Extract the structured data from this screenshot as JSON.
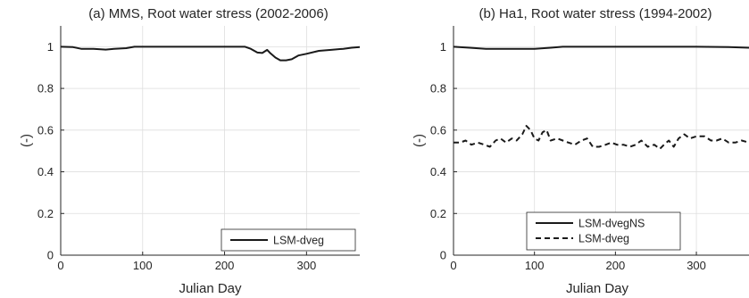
{
  "chart_data": [
    {
      "type": "line",
      "title": "(a) MMS, Root water stress (2002-2006)",
      "xlabel": "Julian Day",
      "ylabel": "(-)",
      "xlim": [
        0,
        365
      ],
      "ylim": [
        0,
        1.1
      ],
      "xticks": [
        0,
        100,
        200,
        300
      ],
      "xtick_labels": [
        "0",
        "100",
        "200",
        "300"
      ],
      "yticks": [
        0,
        0.2,
        0.4,
        0.6,
        0.8,
        1
      ],
      "ytick_labels": [
        "0",
        "0.2",
        "0.4",
        "0.6",
        "0.8",
        "1"
      ],
      "grid": true,
      "legend": "bottom-right",
      "series": [
        {
          "name": "LSM-dveg",
          "style": "solid",
          "x": [
            0,
            15,
            25,
            40,
            55,
            65,
            80,
            90,
            100,
            150,
            200,
            225,
            232,
            240,
            246,
            252,
            256,
            262,
            268,
            275,
            282,
            290,
            300,
            315,
            330,
            345,
            355,
            365
          ],
          "y": [
            1.0,
            0.998,
            0.99,
            0.99,
            0.986,
            0.99,
            0.993,
            1.0,
            1.0,
            1.0,
            1.0,
            1.0,
            0.99,
            0.972,
            0.97,
            0.985,
            0.968,
            0.948,
            0.935,
            0.935,
            0.94,
            0.958,
            0.966,
            0.98,
            0.985,
            0.99,
            0.995,
            0.998
          ]
        }
      ]
    },
    {
      "type": "line",
      "title": "(b) Ha1, Root water stress (1994-2002)",
      "xlabel": "Julian Day",
      "ylabel": "(-)",
      "xlim": [
        0,
        365
      ],
      "ylim": [
        0,
        1.1
      ],
      "xticks": [
        0,
        100,
        200,
        300
      ],
      "xtick_labels": [
        "0",
        "100",
        "200",
        "300"
      ],
      "yticks": [
        0,
        0.2,
        0.4,
        0.6,
        0.8,
        1
      ],
      "ytick_labels": [
        "0",
        "0.2",
        "0.4",
        "0.6",
        "0.8",
        "1"
      ],
      "grid": true,
      "legend": "bottom-right",
      "series": [
        {
          "name": "LSM-dvegNS",
          "style": "solid",
          "x": [
            0,
            20,
            40,
            60,
            80,
            100,
            120,
            135,
            150,
            200,
            250,
            300,
            340,
            365
          ],
          "y": [
            1.0,
            0.995,
            0.99,
            0.99,
            0.99,
            0.99,
            0.995,
            1.0,
            1.0,
            1.0,
            1.0,
            1.0,
            0.998,
            0.995
          ],
          "color": "#1a1a1a"
        },
        {
          "name": "LSM-dveg",
          "style": "dashed",
          "x": [
            0,
            8,
            15,
            22,
            30,
            38,
            45,
            52,
            58,
            65,
            72,
            78,
            85,
            90,
            95,
            100,
            105,
            110,
            115,
            120,
            128,
            135,
            142,
            150,
            158,
            165,
            172,
            180,
            188,
            195,
            202,
            210,
            218,
            225,
            232,
            240,
            248,
            255,
            260,
            266,
            272,
            278,
            285,
            292,
            300,
            310,
            318,
            325,
            332,
            340,
            348,
            356,
            365
          ],
          "y": [
            0.54,
            0.54,
            0.55,
            0.53,
            0.54,
            0.53,
            0.52,
            0.55,
            0.56,
            0.54,
            0.56,
            0.55,
            0.58,
            0.62,
            0.6,
            0.56,
            0.55,
            0.59,
            0.6,
            0.55,
            0.56,
            0.55,
            0.54,
            0.53,
            0.55,
            0.56,
            0.52,
            0.52,
            0.53,
            0.54,
            0.53,
            0.53,
            0.52,
            0.53,
            0.55,
            0.52,
            0.53,
            0.51,
            0.53,
            0.55,
            0.52,
            0.56,
            0.58,
            0.56,
            0.57,
            0.57,
            0.55,
            0.55,
            0.56,
            0.54,
            0.54,
            0.55,
            0.54
          ],
          "color": "#1a1a1a"
        }
      ]
    }
  ]
}
